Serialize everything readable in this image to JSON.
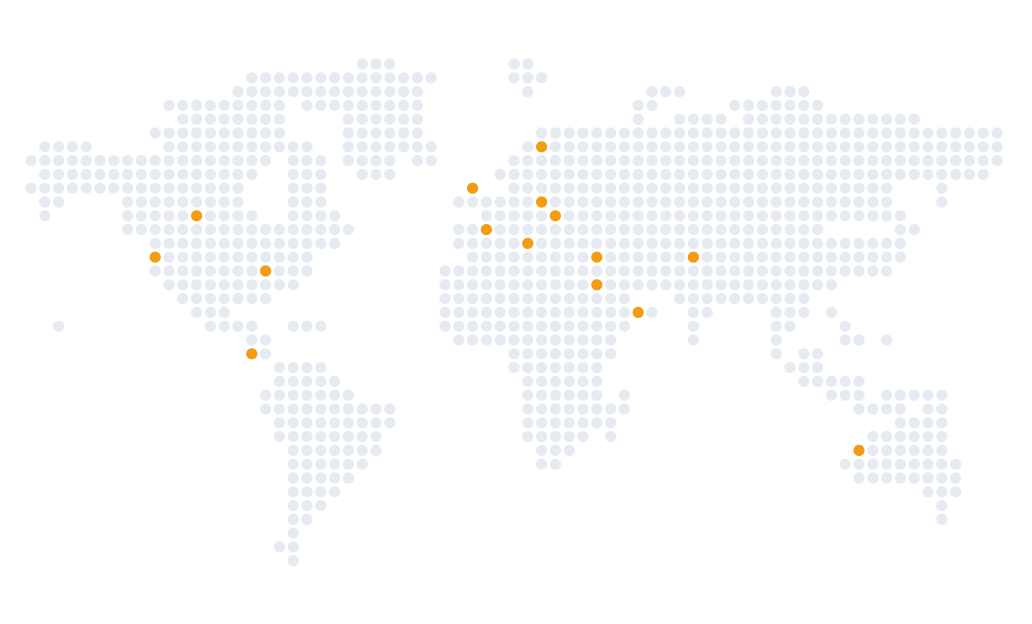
{
  "map": {
    "land_color": "#e6eaf1",
    "marker_color": "#f39c12",
    "background": "#ffffff",
    "markers": [
      {
        "row": 6,
        "col": 37,
        "label": ""
      },
      {
        "row": 9,
        "col": 32,
        "label": ""
      },
      {
        "row": 10,
        "col": 37,
        "label": ""
      },
      {
        "row": 11,
        "col": 12,
        "label": ""
      },
      {
        "row": 11,
        "col": 38,
        "label": ""
      },
      {
        "row": 12,
        "col": 33,
        "label": ""
      },
      {
        "row": 13,
        "col": 36,
        "label": ""
      },
      {
        "row": 14,
        "col": 9,
        "label": ""
      },
      {
        "row": 14,
        "col": 41,
        "label": ""
      },
      {
        "row": 14,
        "col": 48,
        "label": ""
      },
      {
        "row": 15,
        "col": 17,
        "label": ""
      },
      {
        "row": 16,
        "col": 41,
        "label": ""
      },
      {
        "row": 18,
        "col": 44,
        "label": ""
      },
      {
        "row": 21,
        "col": 16,
        "label": ""
      },
      {
        "row": 28,
        "col": 60,
        "label": ""
      }
    ]
  }
}
